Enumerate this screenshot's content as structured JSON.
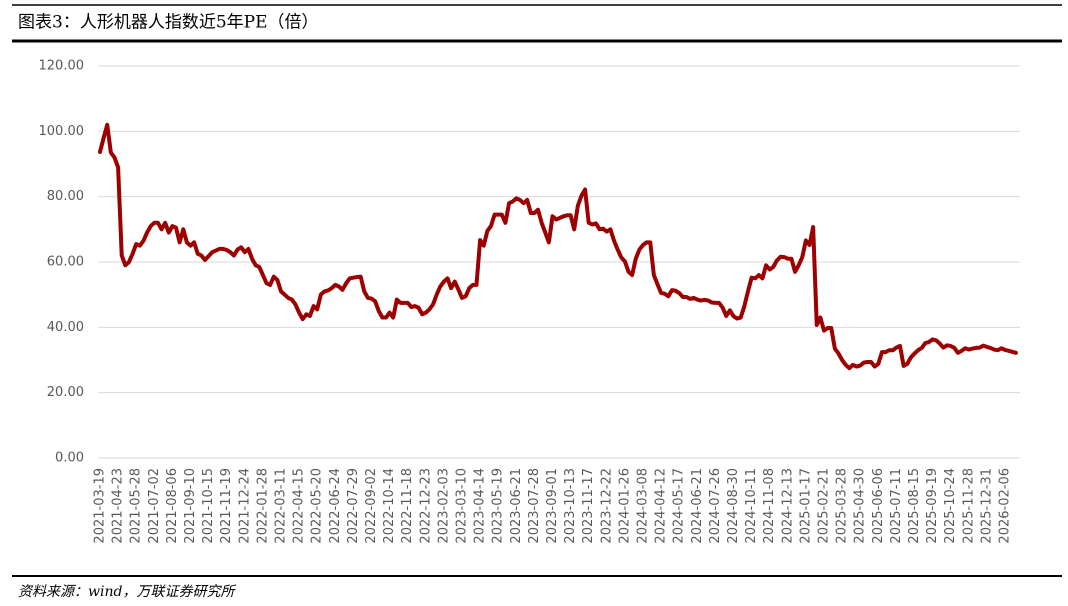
{
  "chart_data": {
    "type": "line",
    "title": "图表3：人形机器人指数近5年PE（倍）",
    "source": "资料来源：wind，万联证券研究所",
    "categories": [
      "2021-03-19",
      null,
      null,
      null,
      null,
      "2021-04-23",
      null,
      null,
      null,
      null,
      "2021-05-28",
      null,
      null,
      null,
      null,
      "2021-07-02",
      null,
      null,
      null,
      null,
      "2021-08-06",
      null,
      null,
      null,
      null,
      "2021-09-10",
      null,
      null,
      null,
      null,
      "2021-10-15",
      null,
      null,
      null,
      null,
      "2021-11-19",
      null,
      null,
      null,
      null,
      "2021-12-24",
      null,
      null,
      null,
      null,
      "2022-01-28",
      null,
      null,
      null,
      null,
      "2022-03-11",
      null,
      null,
      null,
      null,
      "2022-04-15",
      null,
      null,
      null,
      null,
      "2022-05-20",
      null,
      null,
      null,
      null,
      "2022-06-24",
      null,
      null,
      null,
      null,
      "2022-07-29",
      null,
      null,
      null,
      null,
      "2022-09-02",
      null,
      null,
      null,
      null,
      "2022-10-14",
      null,
      null,
      null,
      null,
      "2022-11-18",
      null,
      null,
      null,
      null,
      "2022-12-23",
      null,
      null,
      null,
      null,
      "2023-02-03",
      null,
      null,
      null,
      null,
      "2023-03-10",
      null,
      null,
      null,
      null,
      "2023-04-14",
      null,
      null,
      null,
      null,
      "2023-05-19",
      null,
      null,
      null,
      null,
      "2023-06-21",
      null,
      null,
      null,
      null,
      "2023-07-28",
      null,
      null,
      null,
      null,
      "2023-09-01",
      null,
      null,
      null,
      null,
      "2023-10-13",
      null,
      null,
      null,
      null,
      "2023-11-17",
      null,
      null,
      null,
      null,
      "2023-12-22",
      null,
      null,
      null,
      null,
      "2024-01-26",
      null,
      null,
      null,
      null,
      "2024-03-08",
      null,
      null,
      null,
      null,
      "2024-04-12",
      null,
      null,
      null,
      null,
      "2024-05-17",
      null,
      null,
      null,
      null,
      "2024-06-21",
      null,
      null,
      null,
      null,
      "2024-07-26",
      null,
      null,
      null,
      null,
      "2024-08-30",
      null,
      null,
      null,
      null,
      "2024-10-11",
      null,
      null,
      null,
      null,
      "2024-11-08",
      null,
      null,
      null,
      null,
      "2024-12-13",
      null,
      null,
      null,
      null,
      "2025-01-17",
      null,
      null,
      null,
      null,
      "2025-02-21",
      null,
      null,
      null,
      null,
      "2025-03-28",
      null,
      null,
      null,
      null,
      "2025-04-30",
      null,
      null,
      null,
      null,
      "2025-06-06",
      null,
      null,
      null,
      null,
      "2025-07-11",
      null,
      null,
      null,
      null,
      "2025-08-15",
      null,
      null,
      null,
      null,
      "2025-09-19",
      null,
      null,
      null,
      null,
      "2025-10-24",
      null,
      null,
      null,
      null,
      "2025-11-28",
      null,
      null,
      null,
      null,
      "2025-12-31",
      null,
      null,
      null,
      null,
      "2026-02-06",
      null,
      null,
      null
    ],
    "values": [
      93.7,
      98,
      102,
      93.5,
      92,
      89,
      62,
      59,
      60,
      62.5,
      65.5,
      65,
      66.5,
      69,
      71,
      72,
      72,
      70,
      72,
      69,
      71,
      70.5,
      66,
      70,
      66,
      65,
      66,
      62.5,
      62,
      60.6,
      61.8,
      63,
      63.5,
      64,
      64,
      63.7,
      63,
      62,
      63.8,
      64.5,
      63,
      64,
      61,
      59,
      58.5,
      56,
      53.5,
      53,
      55.5,
      54.5,
      51,
      50,
      49,
      48.5,
      47,
      44.5,
      42.5,
      44,
      43.5,
      46.5,
      45.5,
      50,
      51,
      51.3,
      52,
      53,
      52.5,
      51.5,
      53.5,
      55,
      55.2,
      55.4,
      55.5,
      51,
      49,
      48.8,
      48,
      45,
      43,
      43,
      44.5,
      43,
      48.5,
      47.5,
      47.5,
      47.5,
      46.2,
      46.5,
      46,
      44,
      44.5,
      45.5,
      47,
      50,
      52.5,
      54,
      55,
      52,
      54,
      51.6,
      49,
      49.5,
      52,
      53,
      53,
      66.7,
      65,
      69.5,
      71,
      74.5,
      74.5,
      74.5,
      72,
      78,
      78.5,
      79.5,
      79,
      78,
      79,
      75,
      75,
      76,
      72,
      69,
      66,
      74,
      73,
      73.5,
      74,
      74.3,
      74.3,
      70,
      77.2,
      80.3,
      82.2,
      72,
      71.5,
      71.8,
      70,
      70.2,
      69.3,
      70,
      66.5,
      63.8,
      61.4,
      60.2,
      57,
      56,
      61,
      63.8,
      65.2,
      66,
      66,
      56,
      53.2,
      50.5,
      50.3,
      49.5,
      51.4,
      51.2,
      50.5,
      49.3,
      49.3,
      48.7,
      49,
      48.5,
      48.2,
      48.4,
      48.2,
      47.6,
      47.5,
      47.5,
      46,
      43.5,
      45.2,
      43.4,
      42.7,
      43,
      46.5,
      51,
      55.2,
      55,
      56,
      55,
      59,
      57.7,
      58.5,
      60.5,
      61.6,
      61.5,
      61,
      61,
      57,
      59,
      61.5,
      66.6,
      65.2,
      70.7,
      40.7,
      43,
      39,
      39.8,
      39.8,
      33.5,
      32,
      30,
      28.5,
      27.5,
      28.5,
      28,
      28.3,
      29.2,
      29.4,
      29.4,
      28,
      28.8,
      32.4,
      32.4,
      33,
      33,
      33.8,
      34.3,
      28.2,
      28.8,
      30.8,
      32,
      33,
      33.7,
      35.2,
      35.5,
      36.3,
      36,
      35,
      33.8,
      34.5,
      34.3,
      33.7,
      32.2,
      32.8,
      33.6,
      33.2,
      33.5,
      33.7,
      33.8,
      34.4,
      34,
      33.7,
      33.2,
      33,
      33.6,
      33.1,
      32.8,
      32.5,
      32.2
    ],
    "color": "#9c0000",
    "ylim": [
      0,
      120
    ],
    "yticks": [
      {
        "value": 0,
        "label": "0.00"
      },
      {
        "value": 20,
        "label": "20.00"
      },
      {
        "value": 40,
        "label": "40.00"
      },
      {
        "value": 60,
        "label": "60.00"
      },
      {
        "value": 80,
        "label": "80.00"
      },
      {
        "value": 100,
        "label": "100.00"
      },
      {
        "value": 120,
        "label": "120.00"
      }
    ],
    "grid": true
  }
}
